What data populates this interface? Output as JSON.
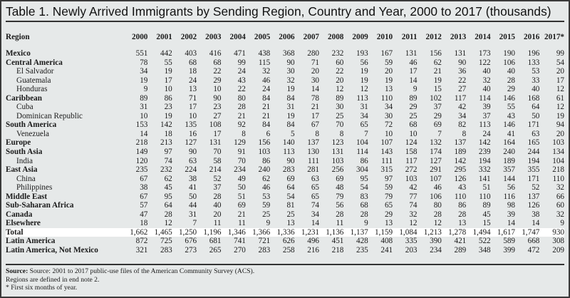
{
  "title": "Table 1. Newly Arrived Immigrants by Sending Region, Country and Year, 2000 to 2017 (thousands)",
  "table": {
    "region_header": "Region",
    "years": [
      "2000",
      "2001",
      "2002",
      "2003",
      "2004",
      "2005",
      "2006",
      "2007",
      "2008",
      "2009",
      "2010",
      "2011",
      "2012",
      "2013",
      "2014",
      "2015",
      "2016",
      "2017*"
    ],
    "rows": [
      {
        "label": "Mexico",
        "level": "region",
        "values": [
          "551",
          "442",
          "403",
          "416",
          "471",
          "438",
          "368",
          "280",
          "232",
          "193",
          "167",
          "131",
          "156",
          "131",
          "173",
          "190",
          "196",
          "99"
        ]
      },
      {
        "label": "Central America",
        "level": "region",
        "values": [
          "78",
          "55",
          "68",
          "68",
          "99",
          "115",
          "90",
          "71",
          "60",
          "56",
          "59",
          "46",
          "62",
          "90",
          "122",
          "106",
          "133",
          "54"
        ]
      },
      {
        "label": "El Salvador",
        "level": "country",
        "values": [
          "34",
          "19",
          "18",
          "22",
          "24",
          "32",
          "30",
          "20",
          "22",
          "19",
          "20",
          "17",
          "21",
          "36",
          "40",
          "40",
          "53",
          "20"
        ]
      },
      {
        "label": "Guatemala",
        "level": "country",
        "values": [
          "19",
          "17",
          "24",
          "29",
          "43",
          "46",
          "32",
          "30",
          "20",
          "19",
          "19",
          "14",
          "19",
          "22",
          "32",
          "28",
          "33",
          "17"
        ]
      },
      {
        "label": "Honduras",
        "level": "country",
        "values": [
          "9",
          "10",
          "13",
          "10",
          "22",
          "24",
          "19",
          "14",
          "12",
          "12",
          "13",
          "9",
          "15",
          "27",
          "40",
          "29",
          "40",
          "12"
        ]
      },
      {
        "label": "Caribbean",
        "level": "region",
        "values": [
          "89",
          "86",
          "71",
          "90",
          "80",
          "84",
          "84",
          "78",
          "89",
          "113",
          "110",
          "89",
          "102",
          "117",
          "114",
          "146",
          "168",
          "61"
        ]
      },
      {
        "label": "Cuba",
        "level": "country",
        "values": [
          "31",
          "23",
          "17",
          "23",
          "28",
          "21",
          "31",
          "21",
          "30",
          "31",
          "34",
          "29",
          "37",
          "42",
          "39",
          "55",
          "64",
          "12"
        ]
      },
      {
        "label": "Dominican Republic",
        "level": "country",
        "values": [
          "10",
          "19",
          "10",
          "27",
          "21",
          "21",
          "19",
          "17",
          "25",
          "34",
          "30",
          "25",
          "29",
          "34",
          "37",
          "43",
          "50",
          "19"
        ]
      },
      {
        "label": "South America",
        "level": "region",
        "values": [
          "153",
          "142",
          "135",
          "108",
          "92",
          "84",
          "84",
          "67",
          "70",
          "65",
          "72",
          "68",
          "69",
          "82",
          "113",
          "146",
          "171",
          "94"
        ]
      },
      {
        "label": "Venezuela",
        "level": "country",
        "values": [
          "14",
          "18",
          "16",
          "17",
          "8",
          "6",
          "5",
          "8",
          "8",
          "7",
          "10",
          "10",
          "7",
          "8",
          "24",
          "41",
          "63",
          "20"
        ]
      },
      {
        "label": "Europe",
        "level": "region",
        "values": [
          "218",
          "213",
          "127",
          "131",
          "129",
          "156",
          "140",
          "137",
          "123",
          "104",
          "107",
          "124",
          "132",
          "137",
          "142",
          "164",
          "165",
          "103"
        ]
      },
      {
        "label": "South Asia",
        "level": "region",
        "values": [
          "149",
          "97",
          "90",
          "70",
          "91",
          "103",
          "113",
          "130",
          "131",
          "114",
          "143",
          "158",
          "174",
          "189",
          "239",
          "240",
          "244",
          "134"
        ]
      },
      {
        "label": "India",
        "level": "country",
        "values": [
          "120",
          "74",
          "63",
          "58",
          "70",
          "86",
          "90",
          "111",
          "103",
          "86",
          "111",
          "117",
          "127",
          "142",
          "194",
          "189",
          "194",
          "104"
        ]
      },
      {
        "label": "East Asia",
        "level": "region",
        "values": [
          "235",
          "232",
          "224",
          "214",
          "234",
          "240",
          "283",
          "281",
          "256",
          "304",
          "315",
          "272",
          "291",
          "295",
          "332",
          "357",
          "355",
          "218"
        ]
      },
      {
        "label": "China",
        "level": "country",
        "values": [
          "67",
          "62",
          "38",
          "52",
          "49",
          "62",
          "69",
          "63",
          "69",
          "95",
          "97",
          "103",
          "107",
          "126",
          "141",
          "144",
          "171",
          "110"
        ]
      },
      {
        "label": "Philippines",
        "level": "country",
        "values": [
          "38",
          "45",
          "41",
          "37",
          "50",
          "46",
          "64",
          "65",
          "48",
          "54",
          "59",
          "42",
          "46",
          "43",
          "51",
          "56",
          "52",
          "32"
        ]
      },
      {
        "label": "Middle East",
        "level": "region",
        "values": [
          "67",
          "95",
          "50",
          "28",
          "51",
          "53",
          "54",
          "65",
          "79",
          "83",
          "79",
          "77",
          "106",
          "110",
          "110",
          "116",
          "137",
          "66"
        ]
      },
      {
        "label": "Sub-Saharan Africa",
        "level": "region",
        "values": [
          "57",
          "64",
          "44",
          "40",
          "69",
          "59",
          "81",
          "74",
          "56",
          "68",
          "65",
          "74",
          "80",
          "86",
          "89",
          "98",
          "126",
          "60"
        ]
      },
      {
        "label": "Canada",
        "level": "region",
        "values": [
          "47",
          "28",
          "31",
          "20",
          "21",
          "25",
          "25",
          "34",
          "28",
          "28",
          "29",
          "32",
          "28",
          "28",
          "45",
          "39",
          "38",
          "32"
        ]
      },
      {
        "label": "Elsewhere",
        "level": "region",
        "values": [
          "18",
          "12",
          "7",
          "11",
          "11",
          "9",
          "13",
          "14",
          "11",
          "9",
          "13",
          "12",
          "12",
          "13",
          "15",
          "14",
          "14",
          "9"
        ]
      },
      {
        "label": "Total",
        "level": "total",
        "values": [
          "1,662",
          "1,465",
          "1,250",
          "1,196",
          "1,346",
          "1,366",
          "1,336",
          "1,231",
          "1,136",
          "1,137",
          "1,159",
          "1,084",
          "1,213",
          "1,278",
          "1,494",
          "1,617",
          "1,747",
          "930"
        ]
      },
      {
        "label": "Latin America",
        "level": "region",
        "values": [
          "872",
          "725",
          "676",
          "681",
          "741",
          "721",
          "626",
          "496",
          "451",
          "428",
          "408",
          "335",
          "390",
          "421",
          "522",
          "589",
          "668",
          "308"
        ]
      },
      {
        "label": "Latin America, Not Mexico",
        "level": "region",
        "values": [
          "321",
          "283",
          "273",
          "265",
          "270",
          "283",
          "258",
          "216",
          "218",
          "235",
          "241",
          "203",
          "234",
          "289",
          "348",
          "399",
          "472",
          "209"
        ]
      }
    ]
  },
  "notes": {
    "source_label": "Source:",
    "source_text": " Source: 2001 to 2017 public-use files of the American Community  Survey (ACS).",
    "line2": "Regions are defined in end note 2.",
    "line3": "* First six months of year."
  }
}
